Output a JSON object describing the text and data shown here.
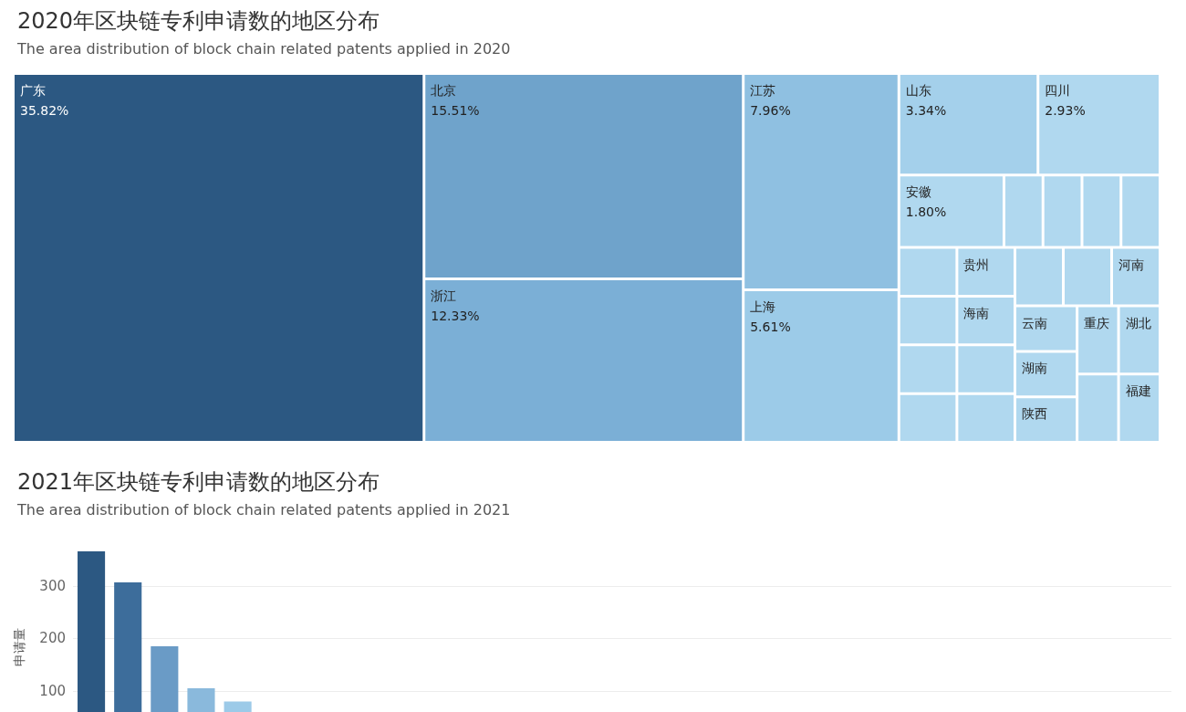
{
  "chart_data": [
    {
      "type": "other",
      "title": "2020年区块链专利申请数的地区分布",
      "subtitle": "The area distribution of block chain related patents applied in 2020",
      "categories": [
        "广东",
        "北京",
        "浙江",
        "江苏",
        "上海",
        "山东",
        "四川",
        "安徽",
        "福建",
        null,
        "湖北",
        "重庆",
        "陕西",
        "湖南",
        "云南",
        "河南",
        null,
        null,
        null,
        null,
        "海南",
        "贵州",
        null,
        null,
        null,
        null,
        null,
        null,
        null,
        null
      ],
      "values": [
        35.82,
        15.51,
        12.33,
        7.96,
        5.61,
        3.34,
        2.93,
        1.8,
        null,
        null,
        null,
        null,
        null,
        null,
        null,
        null,
        null,
        null,
        null,
        null,
        null,
        null,
        null,
        null,
        null,
        null,
        null,
        null,
        null,
        null
      ],
      "value_labels": [
        "35.82%",
        "15.51%",
        "12.33%",
        "7.96%",
        "5.61%",
        "3.34%",
        "2.93%",
        "1.80%",
        null,
        null,
        null,
        null,
        null,
        null,
        null,
        null,
        null,
        null,
        null,
        null,
        null,
        null,
        null,
        null,
        null,
        null,
        null,
        null,
        null,
        null
      ],
      "colors": [
        "#2c5882",
        "#6fa3cb",
        "#7bafd6",
        "#8fc0e1",
        "#9ccbe8",
        "#a4d0eb",
        "#b0d8ef",
        "#b0d8ef",
        "#b0d8ef",
        "#b0d8ef",
        "#b0d8ef",
        "#b0d8ef",
        "#b0d8ef",
        "#b0d8ef",
        "#b0d8ef",
        "#b0d8ef",
        "#b0d8ef",
        "#b0d8ef",
        "#b0d8ef",
        "#b0d8ef",
        "#b0d8ef",
        "#b0d8ef",
        "#b0d8ef",
        "#b0d8ef",
        "#b0d8ef",
        "#b0d8ef",
        "#b0d8ef",
        "#b0d8ef",
        "#b0d8ef",
        "#b0d8ef"
      ]
    },
    {
      "type": "bar",
      "title": "2021年区块链专利申请数的地区分布",
      "subtitle": "The area distribution of block chain related patents applied in 2021",
      "ylabel": "申请量",
      "categories": [
        null,
        null,
        null,
        null,
        null,
        null,
        null,
        null,
        null,
        null,
        null,
        null,
        null,
        null,
        null,
        null,
        null,
        null,
        null,
        null,
        null,
        null,
        null,
        null,
        null,
        null,
        null,
        null,
        null,
        null
      ],
      "values": [
        366,
        307,
        185,
        105,
        80,
        null,
        null,
        null,
        null,
        null,
        null,
        null,
        null,
        null,
        null,
        null,
        null,
        null,
        null,
        null,
        null,
        null,
        null,
        null,
        null,
        null,
        null,
        null,
        null,
        null
      ],
      "colors": [
        "#2c5882",
        "#3d6d9b",
        "#6a9bc6",
        "#8ab9dc",
        "#9ccae8",
        "#a4d0eb",
        "#a4d0eb",
        "#a4d0eb",
        "#a4d0eb",
        "#a4d0eb",
        "#a4d0eb",
        "#a4d0eb",
        "#a4d0eb",
        "#a4d0eb",
        "#a4d0eb",
        "#a4d0eb",
        "#a4d0eb",
        "#a4d0eb",
        "#a4d0eb",
        "#a4d0eb",
        "#a4d0eb",
        "#a4d0eb",
        "#a4d0eb",
        "#a4d0eb",
        "#a4d0eb",
        "#a4d0eb",
        "#a4d0eb",
        "#a4d0eb",
        "#a4d0eb",
        "#a4d0eb"
      ],
      "ylim": [
        0,
        366
      ],
      "yticks": [
        100,
        200,
        300
      ],
      "grid": "y",
      "tick_labels": "y"
    }
  ]
}
